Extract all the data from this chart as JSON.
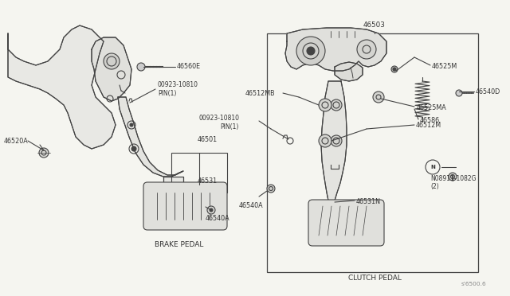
{
  "bg_color": "#f5f5f0",
  "fig_width": 6.4,
  "fig_height": 3.72,
  "dpi": 100,
  "line_color": "#444444",
  "text_color": "#333333",
  "label_fs": 5.8,
  "title_fs": 6.5,
  "parts": {
    "brake_label": "BRAKE PEDAL",
    "clutch_label": "CLUTCH PEDAL",
    "part_num_46503": "46503",
    "part_num_46560E": "46560E",
    "part_num_00923_brake": "00923-10810\nPIN（1）",
    "part_num_46520A": "46520A",
    "part_num_46501": "46501",
    "part_num_46531": "46531",
    "part_num_46540A": "46540A",
    "part_num_46525M": "46525M",
    "part_num_46540D": "46540D",
    "part_num_46512MB": "46512MB",
    "part_num_46525MA": "46525MA",
    "part_num_46586": "46586",
    "part_num_46512M": "46512M",
    "part_num_00923_clutch": "00923-10810\nPIN（1）",
    "part_num_N08911": "N08911-1082G\n（2）",
    "part_num_46531N": "46531N",
    "watermark": "’•6500.6"
  }
}
